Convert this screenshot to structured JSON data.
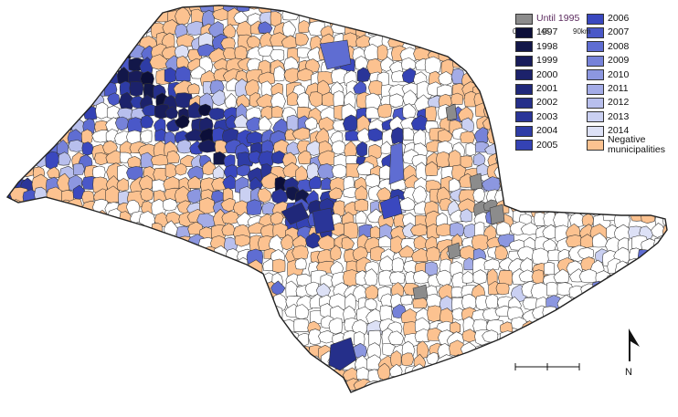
{
  "colors": {
    "until": "#8c8c8c",
    "negative": "#fcc290",
    "border": "#333333",
    "background": "#ffffff"
  },
  "legend": {
    "items": [
      {
        "label": "Until 1995",
        "color": "#8c8c8c",
        "accent": true
      },
      {
        "label": "1997",
        "color": "#0c0f39"
      },
      {
        "label": "1998",
        "color": "#121749"
      },
      {
        "label": "1999",
        "color": "#181c5a"
      },
      {
        "label": "2000",
        "color": "#1c226b"
      },
      {
        "label": "2001",
        "color": "#20287a"
      },
      {
        "label": "2002",
        "color": "#252f8a"
      },
      {
        "label": "2003",
        "color": "#2a3598"
      },
      {
        "label": "2004",
        "color": "#2e3ca6"
      },
      {
        "label": "2005",
        "color": "#3442b4"
      },
      {
        "label": "2006",
        "color": "#3a48bf"
      },
      {
        "label": "2007",
        "color": "#4a58c8"
      },
      {
        "label": "2008",
        "color": "#5f6dd2"
      },
      {
        "label": "2009",
        "color": "#7682d9"
      },
      {
        "label": "2010",
        "color": "#8c97e0"
      },
      {
        "label": "2011",
        "color": "#a4ace7"
      },
      {
        "label": "2012",
        "color": "#b8bfed"
      },
      {
        "label": "2013",
        "color": "#cad0f2"
      },
      {
        "label": "2014",
        "color": "#dde1f6"
      },
      {
        "label": "Negative municipalities",
        "color": "#fcc290"
      }
    ]
  },
  "scale_bar": {
    "labels": [
      "0",
      "45",
      "90km"
    ]
  },
  "north_arrow": {
    "label": "N"
  }
}
